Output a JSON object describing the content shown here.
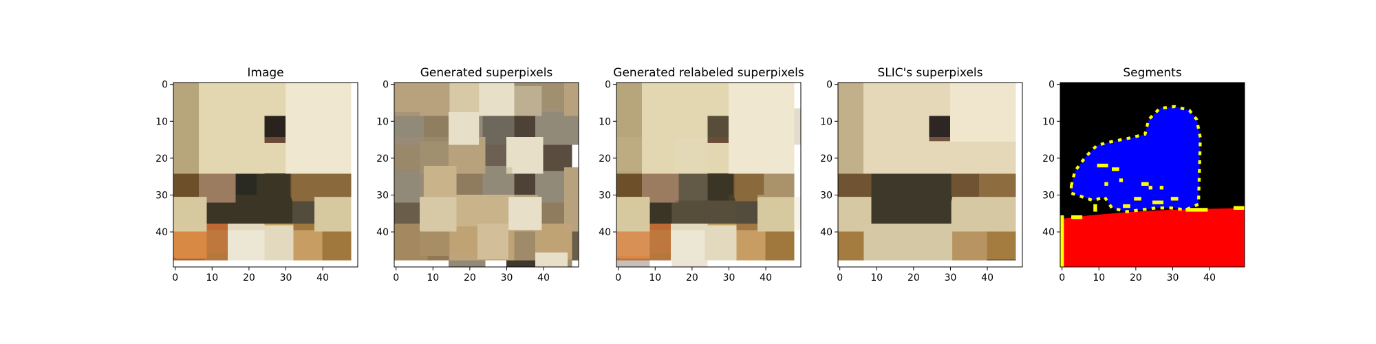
{
  "chart_data": [
    {
      "type": "image",
      "title": "Image",
      "content": "pixelated photo of a man eating at a table with food dishes",
      "xlim": [
        0,
        49
      ],
      "ylim": [
        49,
        0
      ],
      "xticks": [
        "0",
        "10",
        "20",
        "30",
        "40"
      ],
      "yticks": [
        "0",
        "10",
        "20",
        "30",
        "40"
      ]
    },
    {
      "type": "image",
      "title": "Generated superpixels",
      "content": "random-looking superpixel segmentation in brown, beige and gray tones",
      "xlim": [
        0,
        49
      ],
      "ylim": [
        49,
        0
      ],
      "xticks": [
        "0",
        "10",
        "20",
        "30",
        "40"
      ],
      "yticks": [
        "0",
        "10",
        "20",
        "30",
        "40"
      ]
    },
    {
      "type": "image",
      "title": "Generated relabeled superpixels",
      "content": "superpixel segmentation closely resembling the original image",
      "xlim": [
        0,
        49
      ],
      "ylim": [
        49,
        0
      ],
      "xticks": [
        "0",
        "10",
        "20",
        "30",
        "40"
      ],
      "yticks": [
        "0",
        "10",
        "20",
        "30",
        "40"
      ]
    },
    {
      "type": "image",
      "title": "SLIC's superpixels",
      "content": "SLIC superpixel segmentation with smooth regions",
      "xlim": [
        0,
        49
      ],
      "ylim": [
        49,
        0
      ],
      "xticks": [
        "0",
        "10",
        "20",
        "30",
        "40"
      ],
      "yticks": [
        "0",
        "10",
        "20",
        "30",
        "40"
      ]
    },
    {
      "type": "image",
      "title": "Segments",
      "content": "segmentation map: black background, blue person, red table, yellow boundaries",
      "colors": {
        "background": "#000000",
        "person": "#0000ff",
        "table": "#ff0000",
        "boundary": "#ffff00"
      },
      "xlim": [
        0,
        49
      ],
      "ylim": [
        49,
        0
      ],
      "xticks": [
        "0",
        "10",
        "20",
        "30",
        "40"
      ],
      "yticks": [
        "0",
        "10",
        "20",
        "30",
        "40"
      ]
    }
  ]
}
